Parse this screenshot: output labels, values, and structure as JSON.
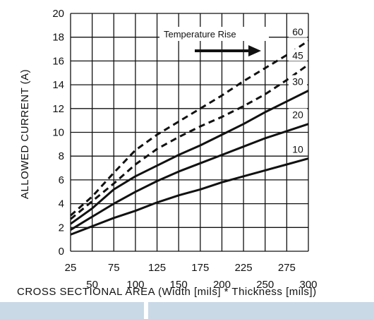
{
  "chart_data": {
    "type": "line",
    "xlabel": "CROSS SECTIONAL AREA (Width [mils] * Thickness [mils])",
    "ylabel": "ALLOWED CURRENT (A)",
    "xlim": [
      25,
      300
    ],
    "ylim": [
      0,
      20
    ],
    "x_ticks_top_row": [
      "25",
      "75",
      "125",
      "175",
      "225",
      "275"
    ],
    "x_ticks_bottom_row": [
      "50",
      "100",
      "150",
      "200",
      "250",
      "300"
    ],
    "y_ticks": [
      "0",
      "2",
      "4",
      "6",
      "8",
      "10",
      "12",
      "14",
      "16",
      "18",
      "20"
    ],
    "grid": true,
    "legend_placement": "top-right",
    "annotation": "Temperature Rise",
    "series": [
      {
        "name": "10",
        "style": "solid",
        "x": [
          25,
          50,
          75,
          100,
          125,
          150,
          175,
          200,
          225,
          250,
          275,
          300
        ],
        "y": [
          1.4,
          2.1,
          2.8,
          3.4,
          4.1,
          4.7,
          5.2,
          5.8,
          6.3,
          6.8,
          7.3,
          7.8
        ]
      },
      {
        "name": "20",
        "style": "solid",
        "x": [
          25,
          50,
          75,
          100,
          125,
          150,
          175,
          200,
          225,
          250,
          275,
          300
        ],
        "y": [
          1.8,
          2.9,
          4.0,
          5.0,
          5.9,
          6.7,
          7.4,
          8.1,
          8.8,
          9.5,
          10.1,
          10.7
        ]
      },
      {
        "name": "30",
        "style": "solid",
        "x": [
          25,
          50,
          75,
          100,
          125,
          150,
          175,
          200,
          225,
          250,
          275,
          300
        ],
        "y": [
          2.3,
          3.6,
          5.2,
          6.3,
          7.2,
          8.1,
          8.9,
          9.8,
          10.7,
          11.7,
          12.6,
          13.5
        ]
      },
      {
        "name": "45",
        "style": "dashed",
        "x": [
          25,
          50,
          75,
          100,
          125,
          150,
          175,
          200,
          225,
          250,
          275,
          300
        ],
        "y": [
          2.7,
          4.2,
          5.7,
          7.3,
          8.6,
          9.6,
          10.5,
          11.3,
          12.2,
          13.2,
          14.4,
          15.7
        ]
      },
      {
        "name": "60",
        "style": "dashed",
        "x": [
          25,
          50,
          75,
          100,
          125,
          150,
          175,
          200,
          225,
          250,
          275,
          300
        ],
        "y": [
          3.0,
          4.6,
          6.6,
          8.5,
          9.8,
          10.9,
          12.0,
          13.1,
          14.3,
          15.4,
          16.5,
          17.7
        ]
      }
    ]
  },
  "colors": {
    "line": "#111111",
    "grid": "#111111",
    "bottom_bar": "#c9d9e6"
  }
}
